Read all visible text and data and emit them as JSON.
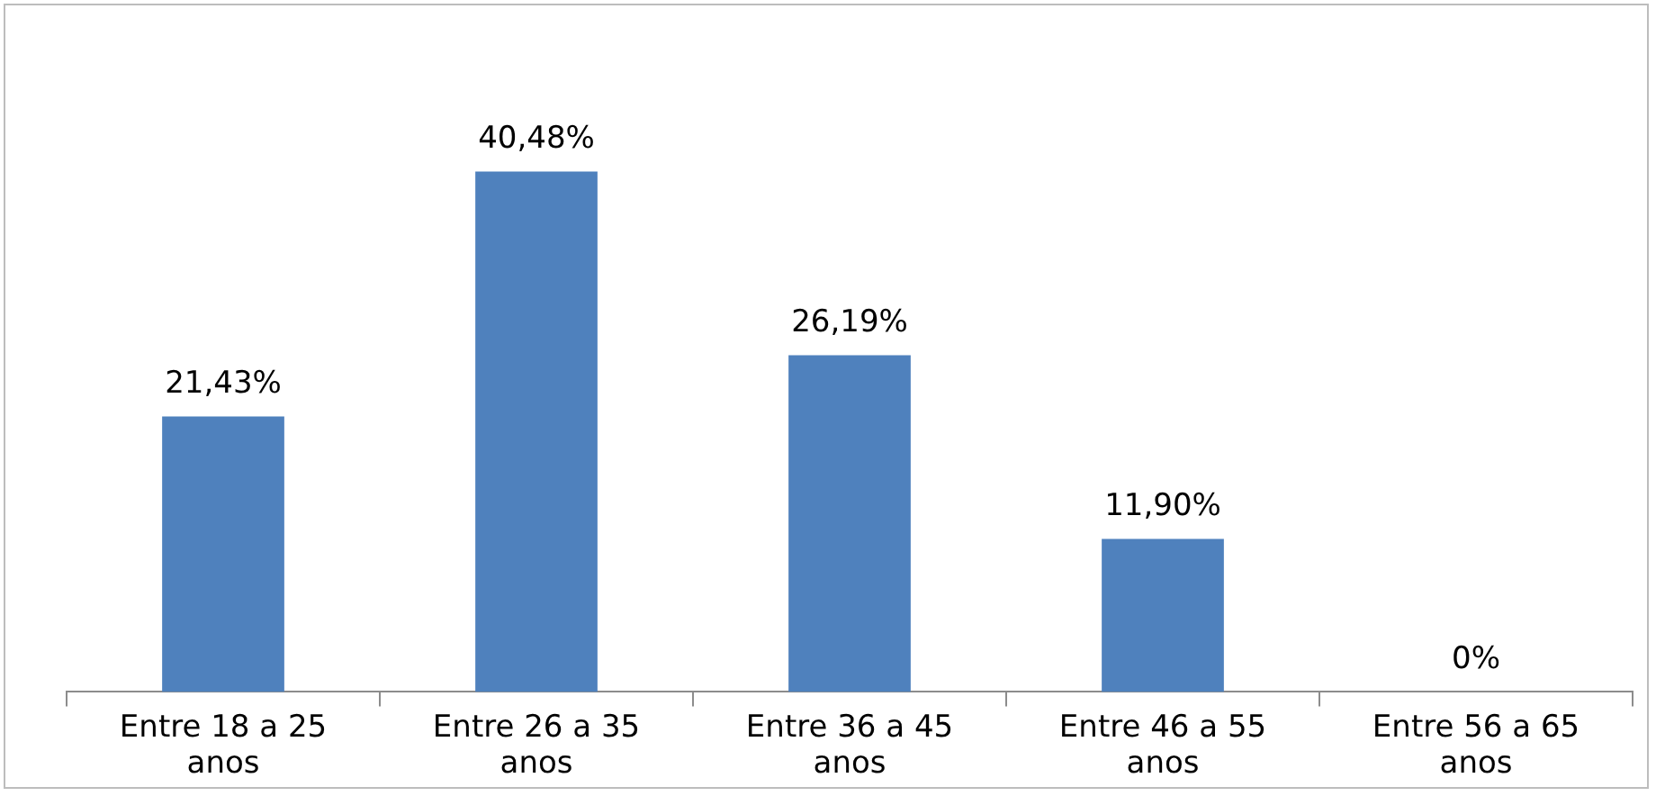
{
  "chart_data": {
    "type": "bar",
    "categories": [
      "Entre 18 a 25 anos",
      "Entre 26 a 35 anos",
      "Entre 36 a 45 anos",
      "Entre 46 a 55 anos",
      "Entre 56 a 65 anos"
    ],
    "values": [
      21.43,
      40.48,
      26.19,
      11.9,
      0
    ],
    "value_labels": [
      "21,43%",
      "40,48%",
      "26,19%",
      "11,90%",
      "0%"
    ],
    "color": "#4f81bd",
    "grid": false,
    "legend": false
  }
}
